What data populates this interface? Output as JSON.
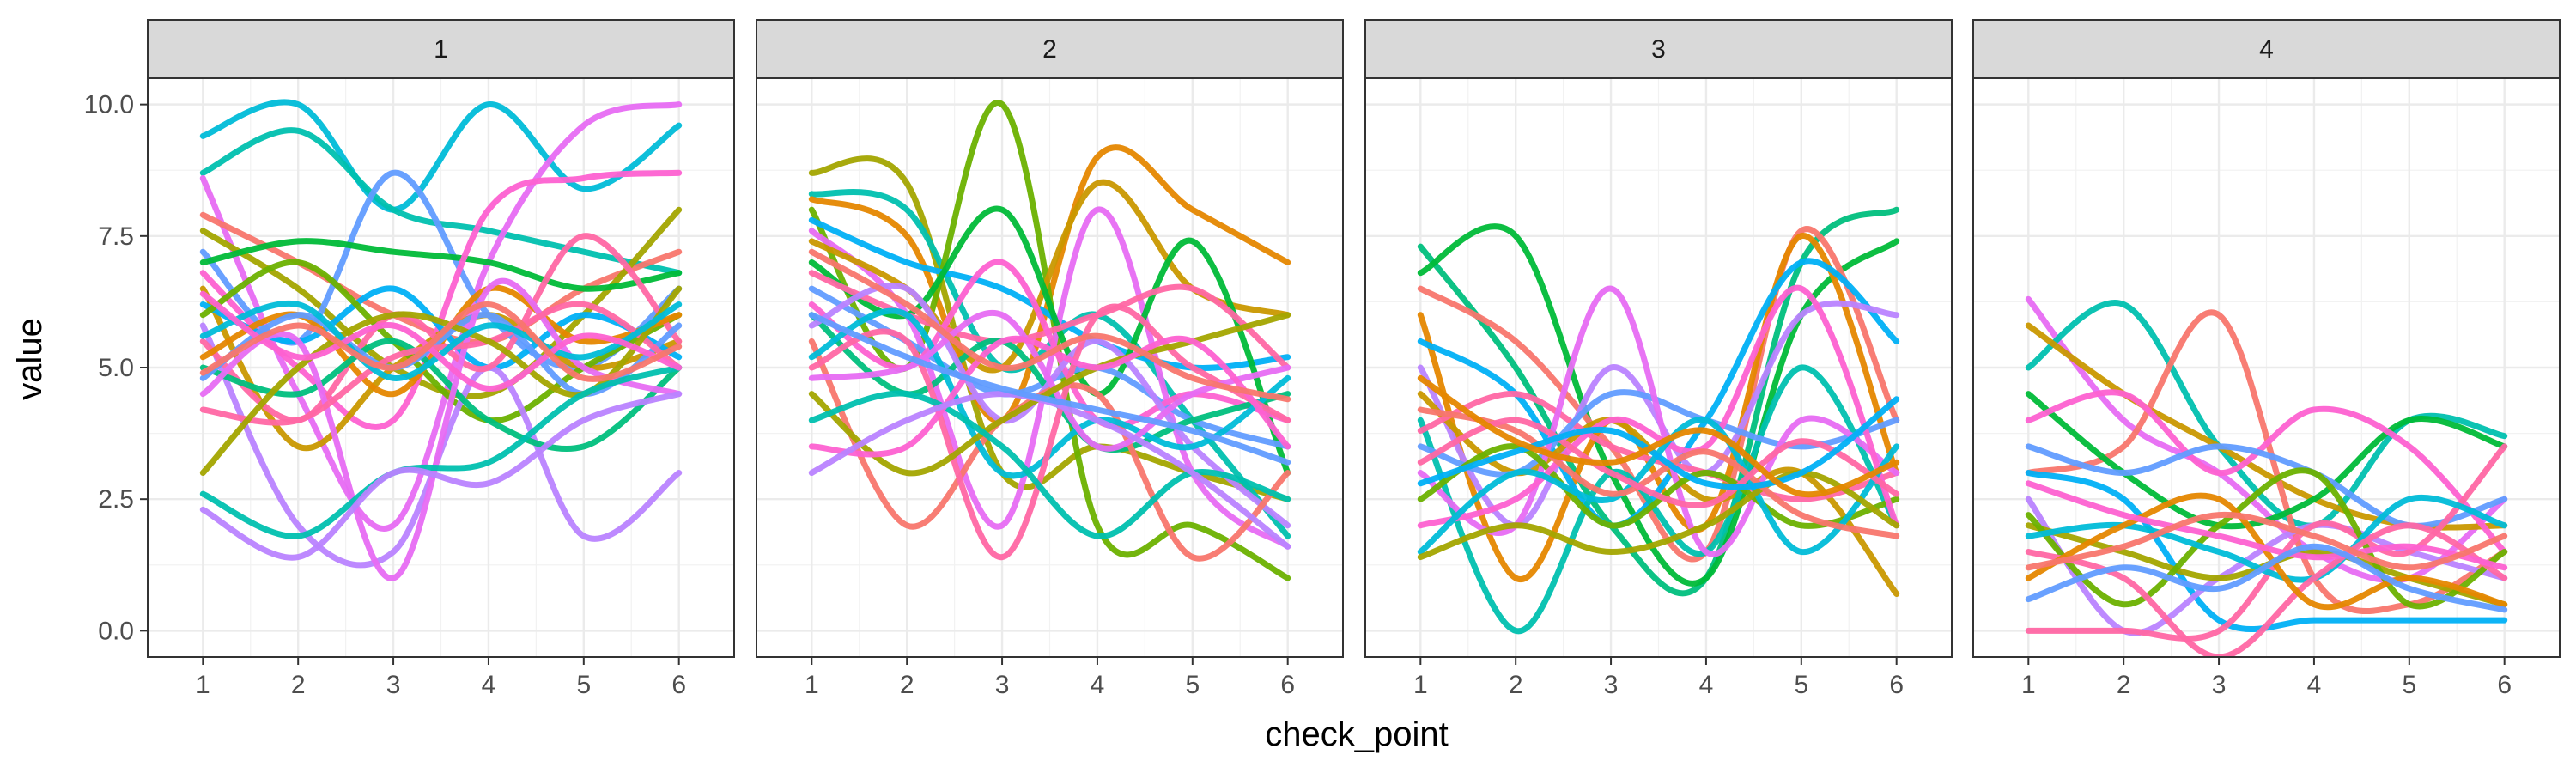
{
  "chart_data": {
    "type": "line",
    "facet_by": "panel",
    "xlabel": "check_point",
    "ylabel": "value",
    "x": [
      1,
      2,
      3,
      4,
      5,
      6
    ],
    "x_ticks": [
      "1",
      "2",
      "3",
      "4",
      "5",
      "6"
    ],
    "y_ticks": [
      "0.0",
      "2.5",
      "5.0",
      "7.5",
      "10.0"
    ],
    "y_tick_values": [
      0,
      2.5,
      5,
      7.5,
      10
    ],
    "xlim": [
      0.42,
      6.58
    ],
    "ylim": [
      -0.5,
      10.5
    ],
    "grid": true,
    "theme": "bw",
    "line_style": "smoothed spline",
    "palette": [
      "#F8766D",
      "#E58700",
      "#C99800",
      "#A3A500",
      "#6BB100",
      "#00BA38",
      "#00BF7D",
      "#00C0AF",
      "#00BCD8",
      "#00B0F6",
      "#619CFF",
      "#B983FF",
      "#E76BF3",
      "#FD61D1",
      "#FF67A4"
    ],
    "panels": [
      {
        "label": "1",
        "series": [
          {
            "color": "#00BCD8",
            "values": [
              9.4,
              10.0,
              8.0,
              10.0,
              8.4,
              9.6
            ]
          },
          {
            "color": "#00C0AF",
            "values": [
              8.7,
              9.5,
              8.0,
              7.6,
              7.2,
              6.8
            ]
          },
          {
            "color": "#E76BF3",
            "values": [
              8.6,
              4.5,
              2.0,
              7.0,
              9.6,
              10.0
            ]
          },
          {
            "color": "#F8766D",
            "values": [
              7.9,
              7.0,
              6.0,
              5.5,
              6.5,
              7.2
            ]
          },
          {
            "color": "#A3A500",
            "values": [
              7.6,
              6.5,
              5.0,
              4.5,
              6.0,
              8.0
            ]
          },
          {
            "color": "#619CFF",
            "values": [
              7.2,
              5.5,
              8.7,
              6.0,
              5.0,
              6.5
            ]
          },
          {
            "color": "#00BA38",
            "values": [
              7.0,
              7.4,
              7.2,
              7.0,
              6.5,
              6.8
            ]
          },
          {
            "color": "#FD61D1",
            "values": [
              6.8,
              5.0,
              4.0,
              8.0,
              8.6,
              8.7
            ]
          },
          {
            "color": "#C99800",
            "values": [
              6.5,
              3.5,
              5.0,
              6.0,
              5.0,
              5.5
            ]
          },
          {
            "color": "#00B0F6",
            "values": [
              6.2,
              5.5,
              6.5,
              5.0,
              6.0,
              5.2
            ]
          },
          {
            "color": "#6BB100",
            "values": [
              6.0,
              7.0,
              5.5,
              4.0,
              5.0,
              6.0
            ]
          },
          {
            "color": "#B983FF",
            "values": [
              5.8,
              2.0,
              1.5,
              5.0,
              1.8,
              3.0
            ]
          },
          {
            "color": "#FF67A4",
            "values": [
              5.5,
              4.0,
              6.0,
              5.0,
              7.5,
              5.5
            ]
          },
          {
            "color": "#E58700",
            "values": [
              5.2,
              6.0,
              4.5,
              6.5,
              5.5,
              6.0
            ]
          },
          {
            "color": "#00BF7D",
            "values": [
              5.0,
              4.5,
              5.5,
              4.0,
              3.5,
              5.0
            ]
          },
          {
            "color": "#619CFF",
            "values": [
              4.8,
              6.0,
              5.0,
              6.0,
              4.5,
              5.8
            ]
          },
          {
            "color": "#E76BF3",
            "values": [
              4.5,
              5.5,
              1.0,
              6.5,
              5.0,
              4.5
            ]
          },
          {
            "color": "#FF67A4",
            "values": [
              4.2,
              4.0,
              5.2,
              5.5,
              6.2,
              5.0
            ]
          },
          {
            "color": "#A3A500",
            "values": [
              3.0,
              5.0,
              6.0,
              5.5,
              4.5,
              6.5
            ]
          },
          {
            "color": "#00C0AF",
            "values": [
              2.6,
              1.8,
              3.0,
              3.2,
              4.5,
              5.0
            ]
          },
          {
            "color": "#B983FF",
            "values": [
              2.3,
              1.4,
              3.0,
              2.8,
              4.0,
              4.5
            ]
          },
          {
            "color": "#00BCD8",
            "values": [
              5.6,
              6.2,
              4.8,
              5.8,
              5.2,
              6.2
            ]
          },
          {
            "color": "#FD61D1",
            "values": [
              6.4,
              5.2,
              5.8,
              4.6,
              5.6,
              5.0
            ]
          },
          {
            "color": "#F8766D",
            "values": [
              4.9,
              5.8,
              5.0,
              6.2,
              4.8,
              5.4
            ]
          }
        ]
      },
      {
        "label": "2",
        "series": [
          {
            "color": "#A3A500",
            "values": [
              8.7,
              8.5,
              3.0,
              3.5,
              3.0,
              2.5
            ]
          },
          {
            "color": "#00C0AF",
            "values": [
              8.3,
              8.0,
              5.0,
              6.0,
              4.0,
              1.8
            ]
          },
          {
            "color": "#E58700",
            "values": [
              8.2,
              7.5,
              4.0,
              9.0,
              8.0,
              7.0
            ]
          },
          {
            "color": "#6BB100",
            "values": [
              8.0,
              5.0,
              10.0,
              2.0,
              2.0,
              1.0
            ]
          },
          {
            "color": "#00B0F6",
            "values": [
              7.8,
              7.0,
              6.5,
              5.5,
              5.0,
              5.2
            ]
          },
          {
            "color": "#E76BF3",
            "values": [
              7.6,
              6.0,
              2.0,
              8.0,
              3.0,
              1.6
            ]
          },
          {
            "color": "#C99800",
            "values": [
              7.4,
              6.5,
              5.0,
              8.5,
              6.5,
              6.0
            ]
          },
          {
            "color": "#00BA38",
            "values": [
              7.0,
              6.0,
              8.0,
              4.5,
              7.4,
              3.0
            ]
          },
          {
            "color": "#FF67A4",
            "values": [
              6.8,
              6.0,
              5.5,
              6.0,
              6.5,
              5.0
            ]
          },
          {
            "color": "#619CFF",
            "values": [
              6.5,
              5.5,
              4.5,
              5.0,
              4.0,
              3.5
            ]
          },
          {
            "color": "#FD61D1",
            "values": [
              6.2,
              5.0,
              7.0,
              4.0,
              4.5,
              4.0
            ]
          },
          {
            "color": "#00BF7D",
            "values": [
              6.0,
              4.5,
              5.5,
              3.5,
              4.0,
              4.5
            ]
          },
          {
            "color": "#B983FF",
            "values": [
              5.8,
              6.5,
              4.0,
              5.5,
              3.5,
              2.0
            ]
          },
          {
            "color": "#F8766D",
            "values": [
              5.5,
              2.0,
              4.0,
              4.5,
              1.4,
              3.0
            ]
          },
          {
            "color": "#00BCD8",
            "values": [
              5.2,
              6.0,
              3.0,
              4.0,
              3.5,
              4.8
            ]
          },
          {
            "color": "#FF67A4",
            "values": [
              5.0,
              5.5,
              1.4,
              6.0,
              5.0,
              4.0
            ]
          },
          {
            "color": "#E76BF3",
            "values": [
              4.8,
              5.0,
              6.0,
              3.5,
              4.5,
              5.0
            ]
          },
          {
            "color": "#A3A500",
            "values": [
              4.5,
              3.0,
              4.0,
              5.0,
              5.5,
              6.0
            ]
          },
          {
            "color": "#00C0AF",
            "values": [
              4.0,
              4.5,
              3.5,
              1.8,
              3.0,
              2.5
            ]
          },
          {
            "color": "#FD61D1",
            "values": [
              3.5,
              3.5,
              5.5,
              5.0,
              5.5,
              3.5
            ]
          },
          {
            "color": "#B983FF",
            "values": [
              3.0,
              4.0,
              4.5,
              4.0,
              3.0,
              1.6
            ]
          },
          {
            "color": "#619CFF",
            "values": [
              6.0,
              5.2,
              4.6,
              4.2,
              3.8,
              3.2
            ]
          },
          {
            "color": "#F8766D",
            "values": [
              7.2,
              6.2,
              5.0,
              5.6,
              4.8,
              4.4
            ]
          }
        ]
      },
      {
        "label": "3",
        "series": [
          {
            "color": "#00BF7D",
            "values": [
              7.3,
              5.0,
              2.0,
              1.0,
              7.0,
              8.0
            ]
          },
          {
            "color": "#00BA38",
            "values": [
              6.8,
              7.5,
              3.0,
              1.0,
              6.0,
              7.4
            ]
          },
          {
            "color": "#F8766D",
            "values": [
              6.5,
              5.5,
              3.5,
              1.5,
              7.6,
              4.0
            ]
          },
          {
            "color": "#E58700",
            "values": [
              6.0,
              1.0,
              4.0,
              2.0,
              7.5,
              3.0
            ]
          },
          {
            "color": "#00B0F6",
            "values": [
              5.5,
              4.5,
              2.0,
              4.0,
              7.0,
              5.5
            ]
          },
          {
            "color": "#B983FF",
            "values": [
              5.0,
              2.0,
              5.0,
              3.0,
              6.0,
              6.0
            ]
          },
          {
            "color": "#C99800",
            "values": [
              4.5,
              3.0,
              4.0,
              2.5,
              3.0,
              0.7
            ]
          },
          {
            "color": "#00C0AF",
            "values": [
              4.0,
              0.0,
              3.0,
              1.5,
              5.0,
              2.0
            ]
          },
          {
            "color": "#FF67A4",
            "values": [
              3.8,
              4.5,
              3.5,
              3.0,
              2.5,
              3.0
            ]
          },
          {
            "color": "#619CFF",
            "values": [
              3.5,
              3.0,
              4.5,
              4.0,
              3.5,
              4.0
            ]
          },
          {
            "color": "#E76BF3",
            "values": [
              3.0,
              2.0,
              6.5,
              1.5,
              4.0,
              3.0
            ]
          },
          {
            "color": "#6BB100",
            "values": [
              2.5,
              3.5,
              2.0,
              3.0,
              2.0,
              2.5
            ]
          },
          {
            "color": "#FD61D1",
            "values": [
              2.0,
              2.5,
              4.0,
              3.5,
              6.5,
              2.0
            ]
          },
          {
            "color": "#00BCD8",
            "values": [
              1.5,
              3.0,
              2.5,
              4.0,
              1.5,
              3.5
            ]
          },
          {
            "color": "#A3A500",
            "values": [
              1.4,
              2.0,
              1.5,
              2.0,
              3.0,
              2.0
            ]
          },
          {
            "color": "#F8766D",
            "values": [
              4.2,
              3.8,
              2.6,
              3.4,
              2.2,
              1.8
            ]
          },
          {
            "color": "#FF67A4",
            "values": [
              3.2,
              4.0,
              3.0,
              2.4,
              3.6,
              2.6
            ]
          },
          {
            "color": "#00B0F6",
            "values": [
              2.8,
              3.4,
              3.8,
              2.8,
              3.0,
              4.4
            ]
          },
          {
            "color": "#E58700",
            "values": [
              4.8,
              3.6,
              3.2,
              3.8,
              2.6,
              3.2
            ]
          }
        ]
      },
      {
        "label": "4",
        "series": [
          {
            "color": "#E76BF3",
            "values": [
              6.3,
              4.0,
              3.0,
              1.5,
              1.0,
              2.5
            ]
          },
          {
            "color": "#00C0AF",
            "values": [
              5.0,
              6.2,
              3.5,
              2.0,
              4.0,
              3.7
            ]
          },
          {
            "color": "#C99800",
            "values": [
              5.8,
              4.5,
              3.5,
              2.5,
              2.0,
              2.0
            ]
          },
          {
            "color": "#F8766D",
            "values": [
              3.0,
              3.5,
              6.0,
              1.0,
              0.5,
              1.5
            ]
          },
          {
            "color": "#00BA38",
            "values": [
              4.5,
              3.0,
              2.0,
              2.5,
              4.0,
              3.5
            ]
          },
          {
            "color": "#FD61D1",
            "values": [
              4.0,
              4.5,
              3.0,
              4.2,
              3.5,
              1.5
            ]
          },
          {
            "color": "#619CFF",
            "values": [
              3.5,
              3.0,
              3.5,
              3.0,
              2.0,
              2.5
            ]
          },
          {
            "color": "#00B0F6",
            "values": [
              3.0,
              2.5,
              0.2,
              0.2,
              0.2,
              0.2
            ]
          },
          {
            "color": "#B983FF",
            "values": [
              2.5,
              0.0,
              1.0,
              2.0,
              1.5,
              1.0
            ]
          },
          {
            "color": "#FF67A4",
            "values": [
              0.0,
              0.0,
              0.0,
              2.0,
              1.5,
              3.5
            ]
          },
          {
            "color": "#A3A500",
            "values": [
              2.0,
              1.5,
              1.0,
              1.5,
              1.0,
              0.5
            ]
          },
          {
            "color": "#6BB100",
            "values": [
              2.2,
              0.5,
              2.0,
              3.0,
              0.5,
              1.5
            ]
          },
          {
            "color": "#00BCD8",
            "values": [
              1.8,
              2.0,
              1.5,
              1.0,
              2.5,
              2.0
            ]
          },
          {
            "color": "#FF67A4",
            "values": [
              1.5,
              1.0,
              -0.5,
              1.0,
              2.0,
              1.0
            ]
          },
          {
            "color": "#E58700",
            "values": [
              1.0,
              2.0,
              2.5,
              0.5,
              1.0,
              0.5
            ]
          },
          {
            "color": "#FD61D1",
            "values": [
              2.8,
              2.2,
              1.8,
              1.4,
              1.6,
              1.2
            ]
          },
          {
            "color": "#F8766D",
            "values": [
              1.2,
              1.6,
              2.2,
              1.8,
              1.2,
              1.8
            ]
          },
          {
            "color": "#619CFF",
            "values": [
              0.6,
              1.2,
              0.8,
              1.6,
              0.8,
              0.4
            ]
          }
        ]
      }
    ]
  }
}
